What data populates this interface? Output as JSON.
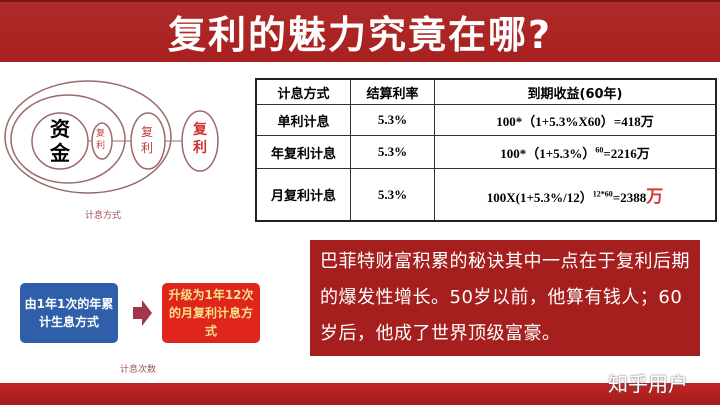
{
  "title": "复利的魅力究竟在哪?",
  "diagram": {
    "center": "资金",
    "rings": [
      "复利",
      "复利",
      "复利"
    ],
    "caption": "计息方式"
  },
  "table": {
    "headers": [
      "计息方式",
      "结算利率",
      "到期收益(60年)"
    ],
    "rows": [
      {
        "method": "单利计息",
        "rate": "5.3%",
        "formula": "100*（1+5.3%X60）=418万"
      },
      {
        "method": "年复利计息",
        "rate": "5.3%",
        "formula_base": "100*（1+5.3%）",
        "formula_exp": "60",
        "formula_result": "=2216万"
      },
      {
        "method": "月复利计息",
        "rate": "5.3%",
        "formula_base": "100X(1+5.3%/12）",
        "formula_exp": "12*60",
        "formula_result": "=2388",
        "formula_unit": "万"
      }
    ]
  },
  "flow": {
    "from": "由1年1次的年累计生息方式",
    "to": "升级为1年12次的月复利计息方式",
    "caption": "计息次数"
  },
  "quote": "巴菲特财富积累的秘诀其中一点在于复利后期的爆发性增长。50岁以前，他算有钱人；60岁后，他成了世界顶级富豪。",
  "watermark": "知乎用户",
  "colors": {
    "title_red": "#a82020",
    "quote_red": "#a61f1f",
    "blue": "#2f5fa8",
    "bright_red": "#e0251d"
  }
}
